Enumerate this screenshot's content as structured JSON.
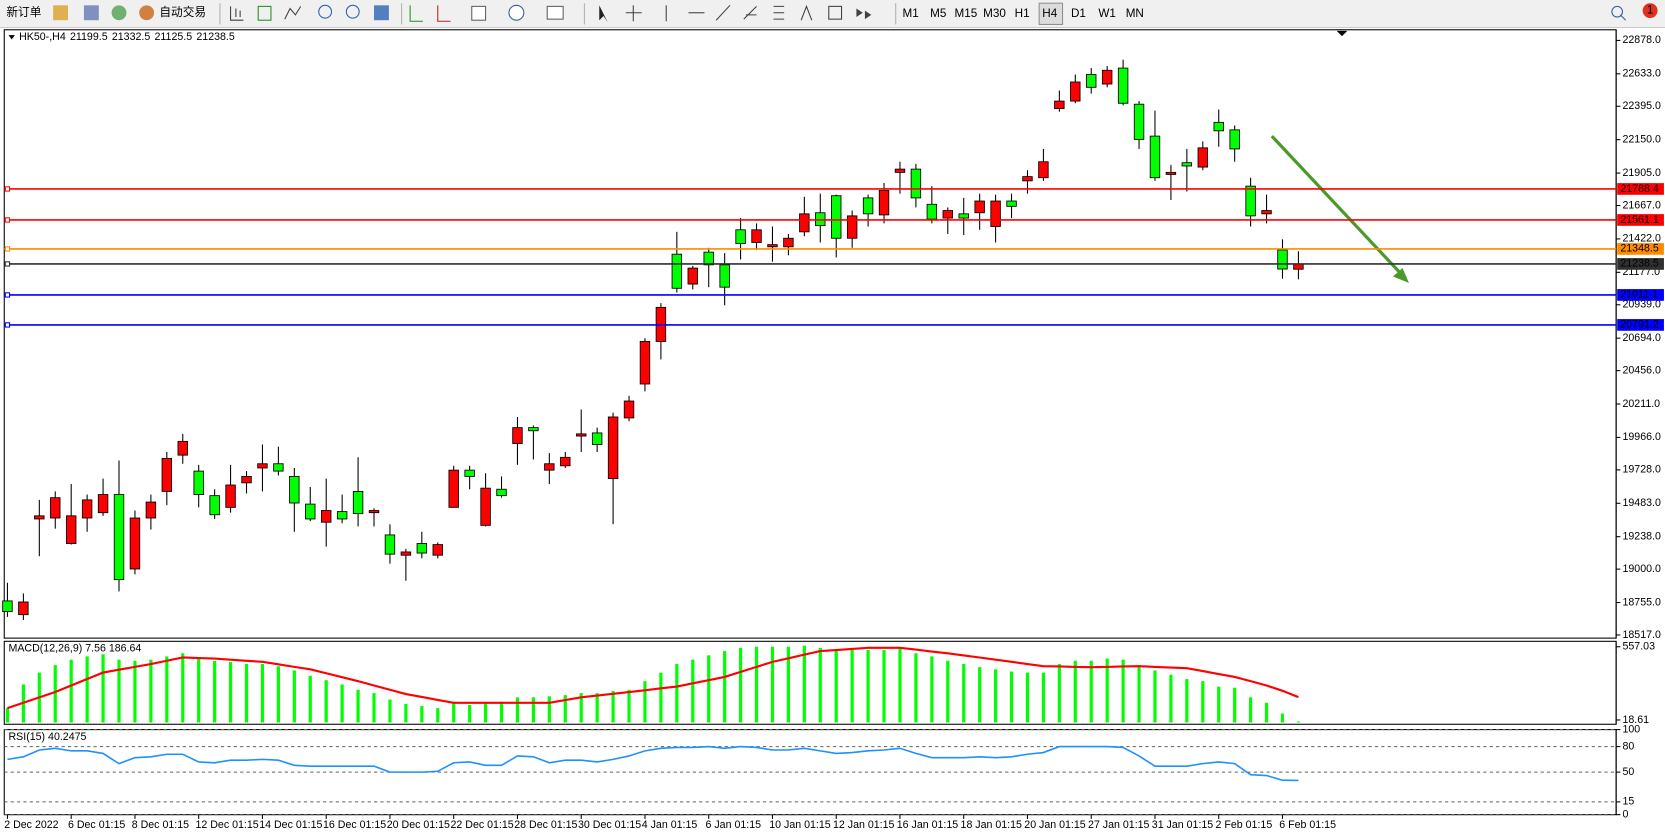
{
  "toolbar": {
    "new_order": "新订单",
    "auto_trading": "自动交易",
    "timeframes": [
      "M1",
      "M5",
      "M15",
      "M30",
      "H1",
      "H4",
      "D1",
      "W1",
      "MN"
    ],
    "active_timeframe": "H4",
    "notifications": 1
  },
  "chart_data": [
    {
      "type": "candlestick",
      "title": "HK50-,H4",
      "categories": [
        "2 Dec 2022",
        null,
        null,
        null,
        "6 Dec 01:15",
        null,
        null,
        null,
        "8 Dec 01:15",
        null,
        null,
        null,
        "12 Dec 01:15",
        null,
        null,
        null,
        "14 Dec 01:15",
        null,
        null,
        null,
        "16 Dec 01:15",
        null,
        null,
        null,
        "20 Dec 01:15",
        null,
        null,
        null,
        "22 Dec 01:15",
        null,
        null,
        null,
        "28 Dec 01:15",
        null,
        null,
        null,
        "30 Dec 01:15",
        null,
        null,
        null,
        "4 Jan 01:15",
        null,
        null,
        null,
        "6 Jan 01:15",
        null,
        null,
        null,
        "10 Jan 01:15",
        null,
        null,
        null,
        "12 Jan 01:15",
        null,
        null,
        null,
        "16 Jan 01:15",
        null,
        null,
        null,
        "18 Jan 01:15",
        null,
        null,
        null,
        "20 Jan 01:15",
        null,
        null,
        null,
        "27 Jan 01:15",
        null,
        null,
        null,
        "31 Jan 01:15",
        null,
        null,
        null,
        "2 Feb 01:15",
        null,
        null,
        null,
        "6 Feb 01:15",
        null
      ],
      "open": [
        18767,
        18666,
        19368,
        19375,
        19188,
        19375,
        19414,
        19547,
        19001,
        19375,
        19570,
        19836,
        19719,
        19539,
        19453,
        19633,
        19742,
        19773,
        19680,
        19477,
        19344,
        19422,
        19570,
        19414,
        19251,
        19102,
        19188,
        19102,
        19453,
        19726,
        19321,
        19586,
        19921,
        20038,
        19726,
        19758,
        19976,
        19999,
        19664,
        20109,
        20358,
        20670,
        21310,
        21091,
        21325,
        21232,
        21489,
        21396,
        21364,
        21364,
        21474,
        21614,
        21739,
        21427,
        21723,
        21598,
        21910,
        21934,
        21676,
        21575,
        21606,
        21614,
        21513,
        21700,
        21848,
        21871,
        22378,
        22433,
        22628,
        22558,
        22675,
        22410,
        22176,
        21895,
        21981,
        21949,
        22277,
        22222,
        21809,
        21606,
        21341,
        21199.5
      ],
      "high": [
        18900,
        18822,
        19508,
        19570,
        19625,
        19547,
        19664,
        19797,
        19430,
        19547,
        19859,
        19992,
        19765,
        19586,
        19765,
        19719,
        19914,
        19898,
        19742,
        19602,
        19664,
        19547,
        19820,
        19446,
        19329,
        19149,
        19274,
        19196,
        19758,
        19758,
        19703,
        19680,
        20116,
        20054,
        19851,
        19859,
        20171,
        20038,
        20148,
        20272,
        20694,
        20951,
        21474,
        21224,
        21357,
        21318,
        21575,
        21536,
        21513,
        21458,
        21731,
        21754,
        21747,
        21630,
        21747,
        21832,
        21988,
        21973,
        21809,
        21653,
        21723,
        21754,
        21747,
        21754,
        21926,
        22082,
        22511,
        22628,
        22675,
        22690,
        22737,
        22433,
        22363,
        21965,
        22082,
        22137,
        22371,
        22254,
        21871,
        21747,
        21419,
        21332.5
      ],
      "low": [
        18650,
        18627,
        19095,
        19297,
        19180,
        19274,
        19391,
        18837,
        18962,
        19290,
        19469,
        19773,
        19453,
        19368,
        19414,
        19555,
        19570,
        19687,
        19274,
        19352,
        19165,
        19336,
        19313,
        19313,
        19040,
        18915,
        19079,
        19079,
        19453,
        19586,
        19313,
        19524,
        19765,
        19804,
        19625,
        19742,
        19859,
        19859,
        19329,
        20085,
        20304,
        20538,
        21029,
        21052,
        21068,
        20935,
        21271,
        21341,
        21255,
        21302,
        21442,
        21396,
        21286,
        21357,
        21513,
        21536,
        21754,
        21653,
        21536,
        21458,
        21450,
        21489,
        21396,
        21575,
        21754,
        21848,
        22355,
        22417,
        22488,
        22534,
        22402,
        22082,
        21848,
        21708,
        21770,
        21926,
        22098,
        21988,
        21513,
        21536,
        21130,
        21125.5
      ],
      "close": [
        18689,
        18759,
        19391,
        19524,
        19391,
        19508,
        19547,
        18923,
        19375,
        19492,
        19812,
        19937,
        19547,
        19399,
        19617,
        19680,
        19773,
        19719,
        19485,
        19368,
        19430,
        19368,
        19407,
        19430,
        19110,
        19126,
        19118,
        19180,
        19726,
        19680,
        19594,
        19539,
        20038,
        20015,
        19773,
        19820,
        19992,
        19914,
        20116,
        20233,
        20670,
        20920,
        21060,
        21208,
        21232,
        21068,
        21388,
        21489,
        21380,
        21427,
        21606,
        21520,
        21427,
        21591,
        21606,
        21778,
        21934,
        21723,
        21567,
        21630,
        21575,
        21700,
        21700,
        21661,
        21879,
        21988,
        22433,
        22573,
        22534,
        22659,
        22417,
        22152,
        21871,
        21910,
        21957,
        22090,
        22215,
        22082,
        21591,
        21630,
        21201,
        21238.5
      ],
      "up_color": "#ff0000",
      "down_color": "#00ff00",
      "outline_color": "#000000",
      "levels": [
        {
          "value": 21788.4,
          "color": "#ff0000"
        },
        {
          "value": 21561.1,
          "color": "#ff0000"
        },
        {
          "value": 21348.5,
          "color": "#ff8c00"
        },
        {
          "value": 21238.5,
          "color": "#303030"
        },
        {
          "value": 21011.1,
          "color": "#0000ff"
        },
        {
          "value": 20791.2,
          "color": "#0000ff"
        }
      ],
      "ylim": [
        18494,
        22956
      ],
      "yticks": [
        {
          "value": 22878,
          "label": "22878.0"
        },
        {
          "value": 22633,
          "label": "22633.0"
        },
        {
          "value": 22395,
          "label": "22395.0"
        },
        {
          "value": 22150,
          "label": "22150.0"
        },
        {
          "value": 21905,
          "label": "21905.0"
        },
        {
          "value": 21667,
          "label": "21667.0"
        },
        {
          "value": 21422,
          "label": "21422.0"
        },
        {
          "value": 21177,
          "label": "21177.0"
        },
        {
          "value": 20939,
          "label": "20939.0"
        },
        {
          "value": 20694,
          "label": "20694.0"
        },
        {
          "value": 20456,
          "label": "20456.0"
        },
        {
          "value": 20211,
          "label": "20211.0"
        },
        {
          "value": 19966,
          "label": "19966.0"
        },
        {
          "value": 19728,
          "label": "19728.0"
        },
        {
          "value": 19483,
          "label": "19483.0"
        },
        {
          "value": 19238,
          "label": "19238.0"
        },
        {
          "value": 19000,
          "label": "19000.0"
        },
        {
          "value": 18755,
          "label": "18755.0"
        },
        {
          "value": 18517,
          "label": "18517.0"
        }
      ],
      "grid": false
    },
    {
      "type": "macd",
      "title": "MACD(12,26,9) 7.56 186.64",
      "values": [
        106,
        280,
        367,
        422,
        462,
        486,
        502,
        462,
        454,
        462,
        486,
        509,
        470,
        454,
        446,
        430,
        430,
        414,
        383,
        343,
        311,
        280,
        240,
        216,
        169,
        137,
        121,
        106,
        145,
        129,
        145,
        153,
        185,
        185,
        193,
        201,
        216,
        216,
        232,
        240,
        304,
        367,
        430,
        462,
        494,
        525,
        549,
        557,
        557,
        557,
        565,
        549,
        541,
        533,
        533,
        533,
        541,
        509,
        486,
        454,
        430,
        407,
        391,
        375,
        367,
        367,
        430,
        454,
        454,
        470,
        462,
        422,
        383,
        351,
        319,
        304,
        264,
        256,
        185,
        145,
        66,
        7.56
      ],
      "signal": [
        106,
        145,
        185,
        224,
        272,
        320,
        367,
        388,
        409,
        430,
        454,
        478,
        474,
        470,
        462,
        454,
        446,
        428,
        409,
        391,
        362,
        333,
        304,
        272,
        241,
        209,
        188,
        166,
        145,
        145,
        145,
        145,
        145,
        145,
        145,
        165,
        185,
        198,
        211,
        224,
        237,
        251,
        264,
        288,
        311,
        335,
        372,
        409,
        446,
        472,
        499,
        525,
        533,
        541,
        549,
        549,
        549,
        536,
        522,
        509,
        493,
        478,
        462,
        446,
        430,
        414,
        412,
        409,
        407,
        409,
        412,
        414,
        409,
        404,
        399,
        378,
        356,
        335,
        304,
        272,
        233,
        186.64
      ],
      "color": "#00ff00",
      "signal_color": "#ff0000",
      "ylim": [
        -13,
        597
      ],
      "yticks": [
        557.03,
        18.61
      ],
      "grid": false
    },
    {
      "type": "line",
      "title": "RSI(15) 40.2475",
      "values": [
        65,
        68,
        76,
        78,
        75,
        75,
        72,
        60,
        67,
        68,
        71,
        71,
        62,
        61,
        64,
        64,
        65,
        64,
        58,
        57,
        57,
        57,
        57,
        57,
        50,
        50,
        50,
        51,
        61,
        62,
        58,
        58,
        69,
        68,
        61,
        64,
        64,
        62,
        65,
        69,
        75,
        78,
        79,
        79,
        80,
        78,
        80,
        79,
        76,
        76,
        78,
        75,
        72,
        73,
        75,
        76,
        78,
        72,
        67,
        67,
        67,
        68,
        67,
        68,
        71,
        73,
        80,
        80,
        80,
        80,
        79,
        69,
        57,
        57,
        57,
        60,
        62,
        60,
        47,
        46,
        40.5,
        40.2475
      ],
      "color": "#1e90ff",
      "ylim": [
        0,
        100
      ],
      "yticks": [
        100,
        80,
        50,
        15,
        0
      ],
      "grid": true
    }
  ]
}
